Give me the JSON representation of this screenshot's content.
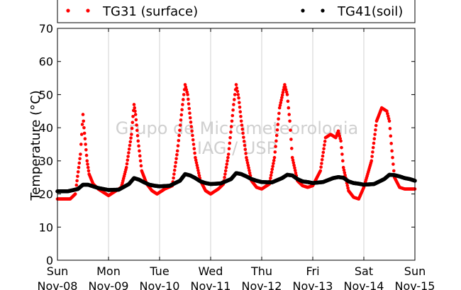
{
  "chart_data": {
    "type": "scatter",
    "title": "",
    "xlabel": "",
    "ylabel": "Temperature (°C)",
    "ylim": [
      0,
      70
    ],
    "xlim": [
      "Nov-08",
      "Nov-15"
    ],
    "yticks": [
      "0",
      "10",
      "20",
      "30",
      "40",
      "50",
      "60",
      "70"
    ],
    "xticks": [
      {
        "day": "Sun",
        "date": "Nov-08"
      },
      {
        "day": "Mon",
        "date": "Nov-09"
      },
      {
        "day": "Tue",
        "date": "Nov-10"
      },
      {
        "day": "Wed",
        "date": "Nov-11"
      },
      {
        "day": "Thu",
        "date": "Nov-12"
      },
      {
        "day": "Fri",
        "date": "Nov-13"
      },
      {
        "day": "Sat",
        "date": "Nov-14"
      },
      {
        "day": "Sun",
        "date": "Nov-15"
      }
    ],
    "grid": "vertical",
    "legend_position": "top",
    "watermark": [
      "Grupo de Micrometeorologia",
      "IAG / USP"
    ],
    "series": [
      {
        "name": "TG31 (surface)",
        "color": "#ff0000",
        "x_day": [
          0.0,
          0.25,
          0.35,
          0.45,
          0.5,
          0.52,
          0.55,
          0.58,
          0.62,
          0.7,
          0.8,
          0.9,
          1.0,
          1.1,
          1.25,
          1.35,
          1.45,
          1.5,
          1.53,
          1.58,
          1.65,
          1.75,
          1.85,
          1.95,
          2.1,
          2.25,
          2.35,
          2.45,
          2.5,
          2.55,
          2.6,
          2.7,
          2.8,
          2.9,
          3.0,
          3.15,
          3.25,
          3.35,
          3.45,
          3.5,
          3.55,
          3.6,
          3.7,
          3.8,
          3.9,
          4.0,
          4.15,
          4.25,
          4.35,
          4.45,
          4.5,
          4.55,
          4.6,
          4.7,
          4.8,
          4.9,
          5.0,
          5.15,
          5.25,
          5.35,
          5.45,
          5.5,
          5.55,
          5.6,
          5.7,
          5.8,
          5.9,
          6.0,
          6.15,
          6.25,
          6.35,
          6.45,
          6.5,
          6.55,
          6.6,
          6.7,
          6.8,
          6.9,
          7.0
        ],
        "values": [
          18.5,
          18.5,
          20,
          32,
          44,
          40,
          35,
          30,
          26,
          23,
          21.5,
          20.5,
          19.5,
          20.5,
          22,
          28,
          38,
          47,
          44,
          36,
          27,
          23,
          21,
          20,
          21.5,
          22.5,
          33,
          47,
          53,
          50,
          43,
          31,
          24,
          21,
          20,
          21.5,
          23,
          32,
          47,
          53,
          49,
          42,
          31,
          24,
          22,
          21.5,
          23,
          31,
          46,
          53,
          50,
          42,
          31,
          24,
          22.5,
          22,
          22.5,
          27,
          37,
          38,
          37,
          39,
          36,
          28,
          21,
          19,
          18.5,
          22,
          30,
          42,
          46,
          45,
          42,
          33,
          25,
          22,
          21.5,
          21.5,
          21.5
        ]
      },
      {
        "name": "TG41(soil)",
        "color": "#000000",
        "x_day": [
          0.0,
          0.2,
          0.4,
          0.5,
          0.6,
          0.7,
          0.8,
          0.9,
          1.0,
          1.2,
          1.4,
          1.5,
          1.6,
          1.7,
          1.8,
          1.9,
          2.0,
          2.2,
          2.4,
          2.5,
          2.6,
          2.7,
          2.8,
          2.9,
          3.0,
          3.2,
          3.4,
          3.5,
          3.6,
          3.7,
          3.8,
          3.9,
          4.0,
          4.2,
          4.4,
          4.5,
          4.6,
          4.7,
          4.8,
          4.9,
          5.0,
          5.2,
          5.4,
          5.5,
          5.6,
          5.7,
          5.8,
          5.9,
          6.0,
          6.2,
          6.4,
          6.5,
          6.6,
          6.7,
          6.8,
          6.9,
          7.0
        ],
        "values": [
          20.8,
          20.8,
          21.5,
          22.8,
          22.8,
          22.3,
          21.8,
          21.5,
          21.2,
          21.3,
          23.0,
          24.8,
          24.3,
          23.5,
          22.8,
          22.5,
          22.3,
          22.5,
          24.0,
          26.0,
          25.6,
          24.8,
          23.8,
          23.3,
          23.0,
          23.2,
          24.5,
          26.3,
          26.0,
          25.3,
          24.5,
          24.0,
          23.6,
          23.5,
          24.8,
          25.8,
          25.6,
          24.5,
          23.8,
          23.6,
          23.3,
          23.6,
          24.8,
          25.1,
          24.9,
          23.8,
          23.3,
          23.1,
          22.8,
          23.0,
          24.5,
          25.8,
          25.7,
          25.3,
          24.8,
          24.5,
          24.0
        ]
      }
    ]
  }
}
